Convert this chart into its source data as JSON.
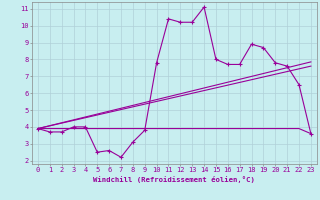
{
  "xlabel": "Windchill (Refroidissement éolien,°C)",
  "ylabel": "",
  "background_color": "#c8eef0",
  "line_color": "#990099",
  "grid_color": "#b0d0d8",
  "xlim": [
    -0.5,
    23.5
  ],
  "ylim": [
    1.8,
    11.4
  ],
  "yticks": [
    2,
    3,
    4,
    5,
    6,
    7,
    8,
    9,
    10,
    11
  ],
  "xticks": [
    0,
    1,
    2,
    3,
    4,
    5,
    6,
    7,
    8,
    9,
    10,
    11,
    12,
    13,
    14,
    15,
    16,
    17,
    18,
    19,
    20,
    21,
    22,
    23
  ],
  "main_y": [
    3.9,
    3.7,
    3.7,
    4.0,
    4.0,
    2.5,
    2.6,
    2.2,
    3.1,
    3.8,
    7.8,
    10.4,
    10.2,
    10.2,
    11.1,
    8.0,
    7.7,
    7.7,
    8.9,
    8.7,
    7.8,
    7.6,
    6.5,
    3.6
  ],
  "line1_y": [
    3.9,
    3.9,
    3.9,
    3.9,
    3.9,
    3.9,
    3.9,
    3.9,
    3.9,
    3.9,
    3.9,
    3.9,
    3.9,
    3.9,
    3.9,
    3.9,
    3.9,
    3.9,
    3.9,
    3.9,
    3.9,
    3.9,
    3.9,
    3.6
  ],
  "line2_y": [
    3.9,
    7.6
  ],
  "line3_y": [
    3.9,
    7.85
  ],
  "trend_x": [
    0,
    23
  ]
}
